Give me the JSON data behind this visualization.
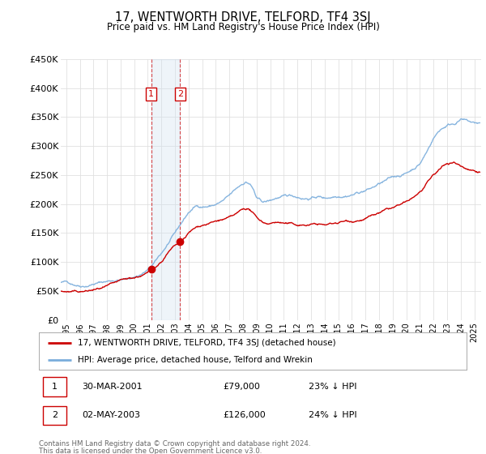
{
  "title": "17, WENTWORTH DRIVE, TELFORD, TF4 3SJ",
  "subtitle": "Price paid vs. HM Land Registry's House Price Index (HPI)",
  "red_label": "17, WENTWORTH DRIVE, TELFORD, TF4 3SJ (detached house)",
  "blue_label": "HPI: Average price, detached house, Telford and Wrekin",
  "transactions": [
    {
      "num": 1,
      "date": "30-MAR-2001",
      "price": 79000,
      "pct": "23%",
      "dir": "↓",
      "year": 2001.25
    },
    {
      "num": 2,
      "date": "02-MAY-2003",
      "price": 126000,
      "pct": "24%",
      "dir": "↓",
      "year": 2003.37
    }
  ],
  "footer1": "Contains HM Land Registry data © Crown copyright and database right 2024.",
  "footer2": "This data is licensed under the Open Government Licence v3.0.",
  "ylim": [
    0,
    450000
  ],
  "yticks": [
    0,
    50000,
    100000,
    150000,
    200000,
    250000,
    300000,
    350000,
    400000,
    450000
  ],
  "ytick_labels": [
    "£0",
    "£50K",
    "£100K",
    "£150K",
    "£200K",
    "£250K",
    "£300K",
    "£350K",
    "£400K",
    "£450K"
  ],
  "xlim_start": 1994.6,
  "xlim_end": 2025.5,
  "background_color": "#ffffff",
  "grid_color": "#e0e0e0",
  "red_color": "#cc0000",
  "blue_color": "#7aaddc",
  "shade_color": "#cfe0f0",
  "hpi_key_years": [
    1995,
    1995.5,
    1996,
    1996.5,
    1997,
    1997.5,
    1998,
    1998.5,
    1999,
    1999.5,
    2000,
    2000.5,
    2001,
    2001.5,
    2002,
    2002.5,
    2003,
    2003.5,
    2004,
    2004.5,
    2005,
    2005.5,
    2006,
    2006.5,
    2007,
    2007.5,
    2008,
    2008.2,
    2008.5,
    2008.8,
    2009,
    2009.5,
    2010,
    2010.5,
    2011,
    2011.5,
    2012,
    2012.5,
    2013,
    2013.5,
    2014,
    2014.5,
    2015,
    2015.5,
    2016,
    2016.5,
    2017,
    2017.5,
    2018,
    2018.5,
    2019,
    2019.5,
    2020,
    2020.5,
    2021,
    2021.5,
    2022,
    2022.5,
    2023,
    2023.5,
    2024,
    2024.5,
    2025
  ],
  "hpi_key_vals": [
    65000,
    63000,
    62000,
    64000,
    68000,
    70000,
    72000,
    74000,
    76000,
    76000,
    80000,
    85000,
    92000,
    103000,
    118000,
    135000,
    150000,
    168000,
    185000,
    195000,
    196000,
    197000,
    200000,
    205000,
    212000,
    222000,
    232000,
    235000,
    232000,
    220000,
    205000,
    198000,
    200000,
    205000,
    205000,
    206000,
    205000,
    204000,
    205000,
    208000,
    205000,
    208000,
    212000,
    215000,
    218000,
    222000,
    226000,
    230000,
    236000,
    240000,
    244000,
    248000,
    252000,
    260000,
    270000,
    290000,
    315000,
    330000,
    338000,
    342000,
    350000,
    345000,
    340000
  ],
  "red_key_years": [
    1995,
    1995.5,
    1996,
    1996.5,
    1997,
    1997.5,
    1998,
    1998.5,
    1999,
    1999.5,
    2000,
    2000.5,
    2001,
    2001.25,
    2001.5,
    2002,
    2002.5,
    2003,
    2003.37,
    2003.8,
    2004,
    2004.5,
    2005,
    2005.5,
    2006,
    2006.5,
    2007,
    2007.5,
    2008,
    2008.3,
    2008.6,
    2009,
    2009.5,
    2010,
    2010.5,
    2011,
    2011.5,
    2012,
    2012.5,
    2013,
    2013.5,
    2014,
    2014.5,
    2015,
    2015.5,
    2016,
    2016.5,
    2017,
    2017.5,
    2018,
    2018.5,
    2019,
    2019.5,
    2020,
    2020.5,
    2021,
    2021.5,
    2022,
    2022.5,
    2023,
    2023.5,
    2024,
    2024.3,
    2025
  ],
  "red_key_vals": [
    50000,
    49000,
    49000,
    50000,
    52000,
    54000,
    56000,
    58000,
    61000,
    63000,
    66000,
    70000,
    74000,
    79000,
    84000,
    96000,
    112000,
    122000,
    126000,
    136000,
    142000,
    150000,
    156000,
    160000,
    163000,
    166000,
    168000,
    172000,
    180000,
    182000,
    178000,
    165000,
    158000,
    158000,
    162000,
    160000,
    158000,
    156000,
    157000,
    158000,
    160000,
    158000,
    160000,
    163000,
    166000,
    168000,
    172000,
    176000,
    180000,
    184000,
    188000,
    191000,
    195000,
    198000,
    205000,
    215000,
    228000,
    242000,
    252000,
    262000,
    265000,
    260000,
    257000,
    255000
  ]
}
